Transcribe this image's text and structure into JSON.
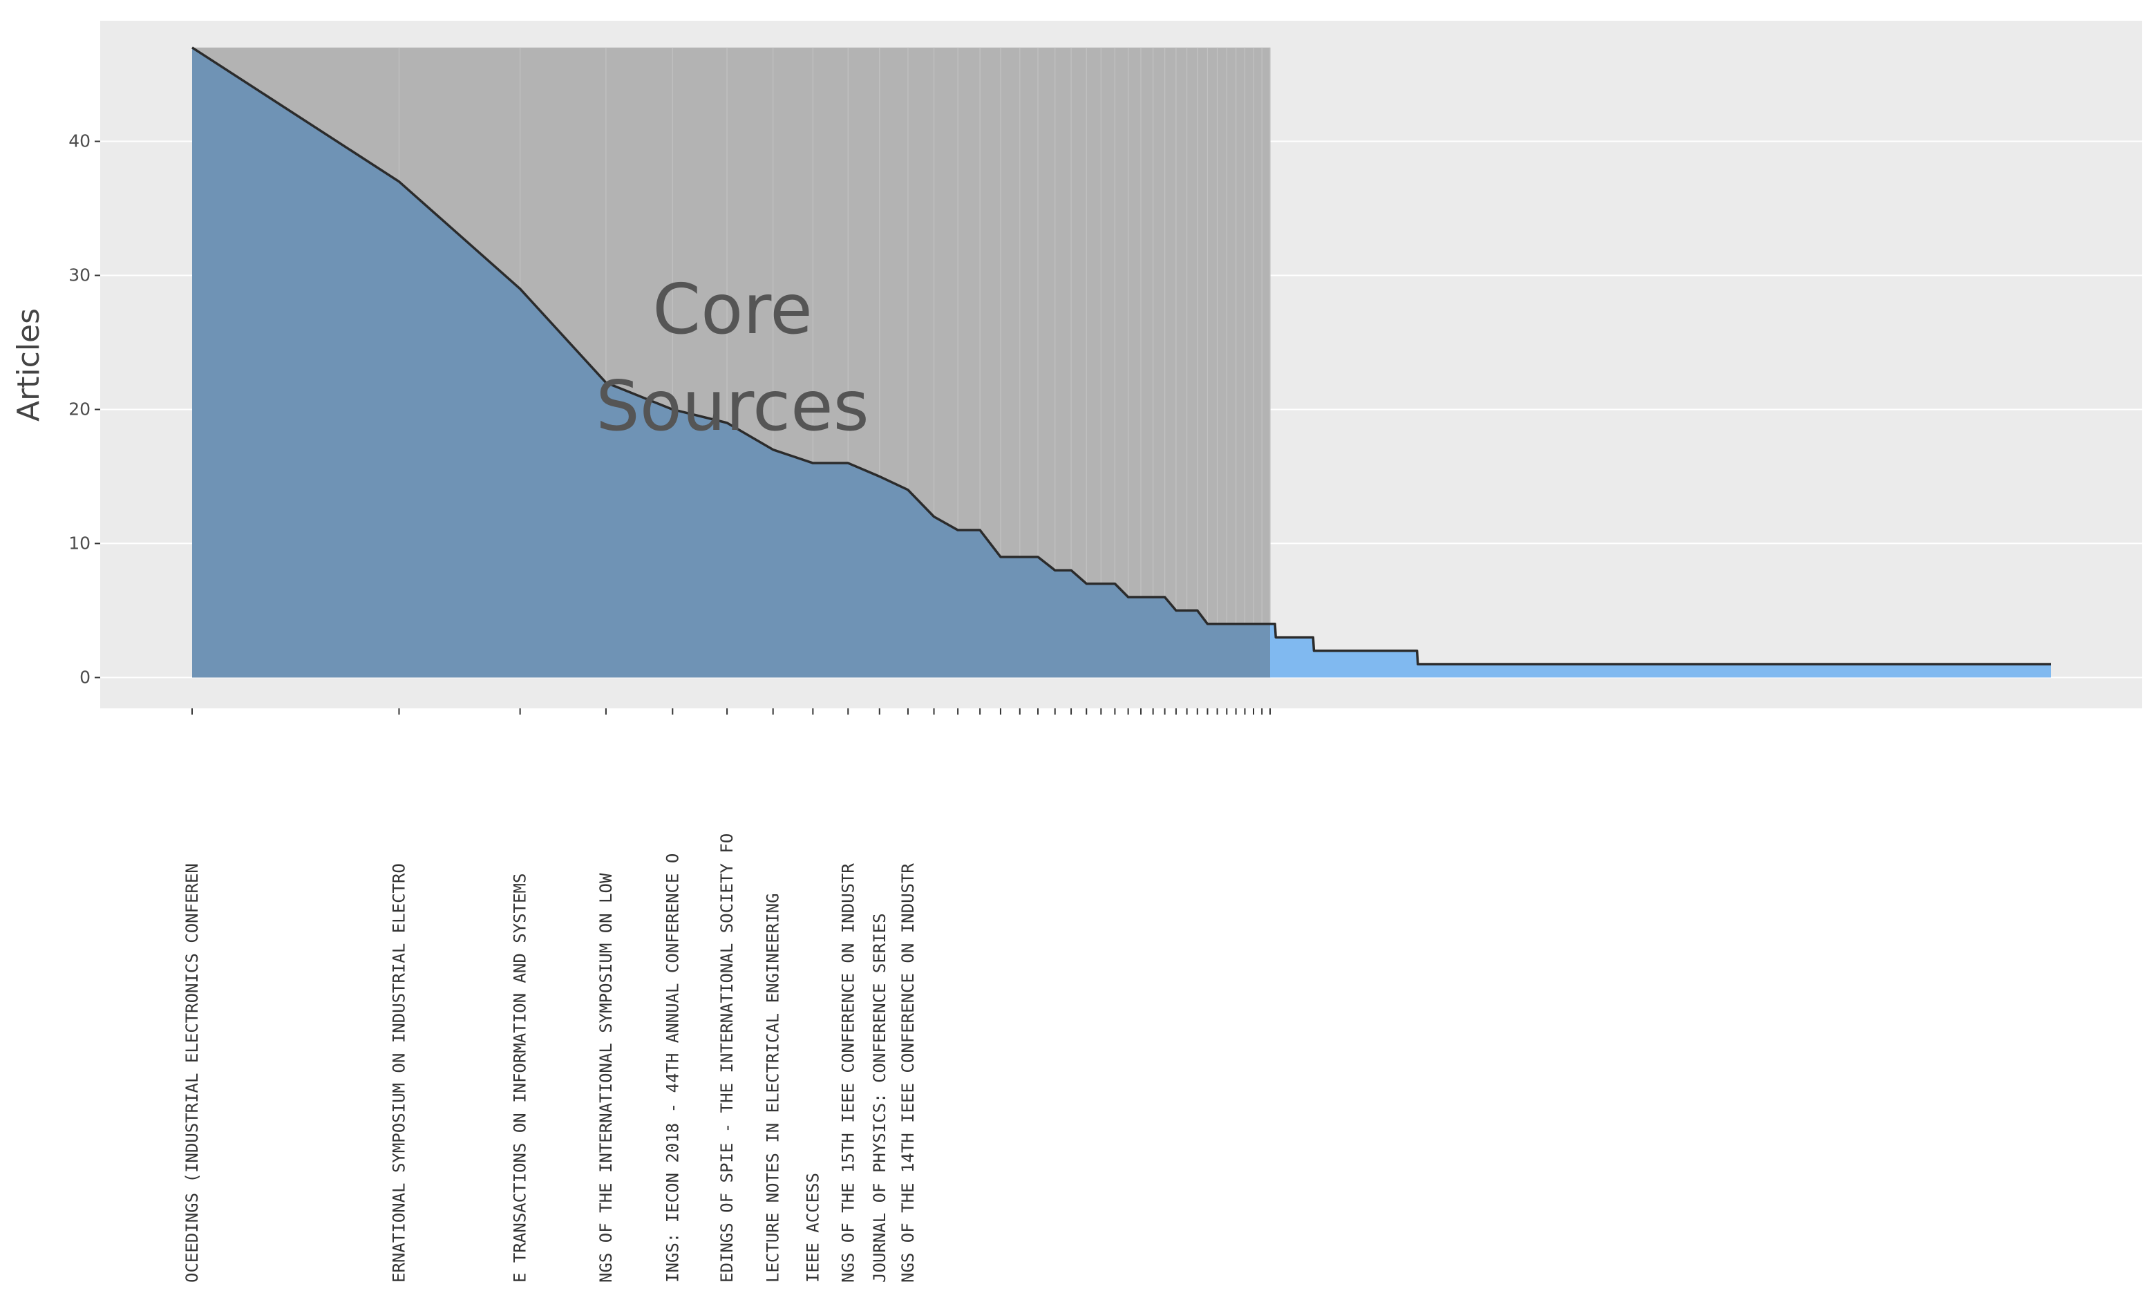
{
  "chart_data": {
    "type": "area",
    "ylabel": "Articles",
    "xlabel": "",
    "ylim": [
      -2.3,
      49
    ],
    "yticks": [
      0,
      10,
      20,
      30,
      40
    ],
    "grid": true,
    "annotation": {
      "lines": [
        "Core",
        "Sources"
      ],
      "region_end_rank": 37
    },
    "colors": {
      "panel": "#ebebeb",
      "grid": "#ffffff",
      "core_shade": "#b3b3b3",
      "core_fill": "#6f93b5",
      "other_fill": "#80b9f0",
      "line": "#2b2b2b"
    },
    "labels": [
      "OCEEDINGS (INDUSTRIAL ELECTRONICS CONFEREN",
      "ERNATIONAL SYMPOSIUM ON INDUSTRIAL ELECTRO",
      "E TRANSACTIONS ON INFORMATION AND SYSTEMS",
      "NGS OF THE INTERNATIONAL SYMPOSIUM ON LOW",
      "INGS: IECON 2018 - 44TH ANNUAL CONFERENCE O",
      "EDINGS OF SPIE - THE INTERNATIONAL SOCIETY FO",
      "LECTURE NOTES IN ELECTRICAL ENGINEERING",
      "IEEE ACCESS",
      "NGS OF THE 15TH IEEE CONFERENCE ON INDUSTR",
      "JOURNAL OF PHYSICS: CONFERENCE SERIES",
      "NGS OF THE 14TH IEEE CONFERENCE ON INDUSTR"
    ],
    "series": [
      {
        "points": [
          [
            1,
            47
          ],
          [
            2,
            37
          ],
          [
            3,
            29
          ],
          [
            4,
            22
          ],
          [
            5,
            20
          ],
          [
            6,
            19
          ],
          [
            7,
            17
          ],
          [
            8,
            16
          ],
          [
            9,
            16
          ],
          [
            10,
            15
          ],
          [
            11,
            14
          ],
          [
            12,
            12
          ],
          [
            13,
            11
          ],
          [
            14,
            11
          ],
          [
            15,
            9
          ],
          [
            16,
            9
          ],
          [
            17,
            9
          ],
          [
            18,
            8
          ],
          [
            19,
            8
          ],
          [
            20,
            7
          ],
          [
            21,
            7
          ],
          [
            22,
            7
          ],
          [
            23,
            6
          ],
          [
            24,
            6
          ],
          [
            25,
            6
          ],
          [
            26,
            6
          ],
          [
            27,
            5
          ],
          [
            28,
            5
          ],
          [
            29,
            5
          ],
          [
            30,
            4
          ],
          [
            31,
            4
          ],
          [
            32,
            4
          ],
          [
            33,
            4
          ],
          [
            34,
            4
          ],
          [
            35,
            4
          ],
          [
            36,
            4
          ],
          [
            37,
            4
          ],
          [
            43,
            4
          ],
          [
            44,
            3
          ],
          [
            90,
            3
          ],
          [
            91,
            2
          ],
          [
            218,
            2
          ],
          [
            219,
            1
          ],
          [
            999,
            1
          ]
        ]
      }
    ]
  }
}
